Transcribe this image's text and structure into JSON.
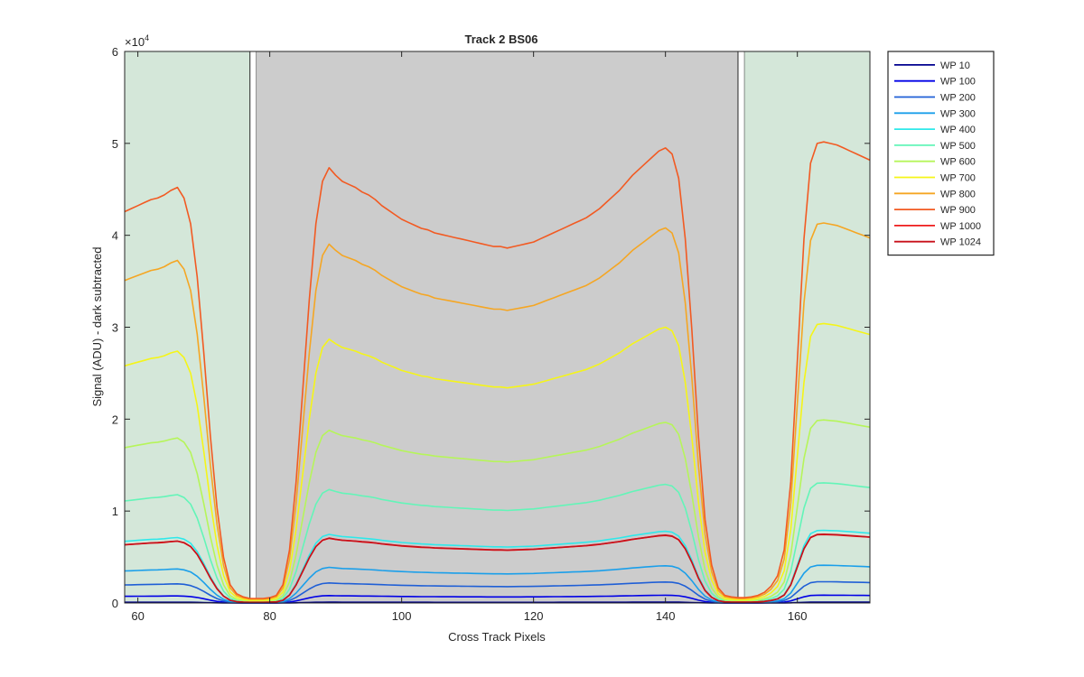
{
  "chart_data": {
    "type": "line",
    "title": "Track 2  BS06",
    "xlabel": "Cross Track Pixels",
    "ylabel": "Signal (ADU) - dark subtracted",
    "y_exponent_label": "×10",
    "y_exponent": "4",
    "xlim": [
      58,
      171
    ],
    "ylim": [
      0,
      60000
    ],
    "x_ticks": [
      60,
      80,
      100,
      120,
      140,
      160
    ],
    "y_ticks": [
      0,
      10000,
      20000,
      30000,
      40000,
      50000,
      60000
    ],
    "y_tick_labels": [
      "0",
      "1",
      "2",
      "3",
      "4",
      "5",
      "6"
    ],
    "grid": false,
    "legend_position": "outside-top-right",
    "regions": [
      {
        "kind": "green",
        "x": [
          58,
          77
        ],
        "color": "#d4e7d9"
      },
      {
        "kind": "gap",
        "x": [
          77,
          78
        ],
        "color": "#ffffff"
      },
      {
        "kind": "gray",
        "x": [
          78,
          151
        ],
        "color": "#cccccc"
      },
      {
        "kind": "gap",
        "x": [
          151,
          152
        ],
        "color": "#ffffff"
      },
      {
        "kind": "green",
        "x": [
          152,
          171
        ],
        "color": "#d4e7d9"
      }
    ],
    "series": [
      {
        "name": "WP 10",
        "color": "#00008f",
        "scale": 0.003
      },
      {
        "name": "WP 100",
        "color": "#0000e6",
        "scale": 0.028
      },
      {
        "name": "WP 200",
        "color": "#1f5fd6",
        "scale": 0.076
      },
      {
        "name": "WP 300",
        "color": "#1a9fea",
        "scale": 0.135
      },
      {
        "name": "WP 400",
        "color": "#2ee8ea",
        "scale": 0.26
      },
      {
        "name": "WP 500",
        "color": "#63f5b8",
        "scale": 0.43
      },
      {
        "name": "WP 600",
        "color": "#b6f55a",
        "scale": 0.655
      },
      {
        "name": "WP 700",
        "color": "#f5f518",
        "scale": 1.0
      },
      {
        "name": "WP 800",
        "color": "#f5a623",
        "scale": 1.36
      },
      {
        "name": "WP 900",
        "color": "#f25a22",
        "scale": 1.65
      },
      {
        "name": "WP 1000",
        "color": "#ee1c1c",
        "scale": 0.245
      },
      {
        "name": "WP 1024",
        "color": "#c8101a",
        "scale": 0.246
      }
    ],
    "reference_profile_wp700": {
      "x": [
        58,
        59,
        60,
        61,
        62,
        63,
        64,
        65,
        66,
        67,
        68,
        69,
        70,
        71,
        72,
        73,
        74,
        75,
        76,
        77,
        78,
        79,
        80,
        81,
        82,
        83,
        84,
        85,
        86,
        87,
        88,
        89,
        90,
        91,
        92,
        93,
        94,
        95,
        96,
        97,
        98,
        99,
        100,
        101,
        102,
        103,
        104,
        105,
        106,
        107,
        108,
        109,
        110,
        111,
        112,
        113,
        114,
        115,
        116,
        117,
        118,
        119,
        120,
        121,
        122,
        123,
        124,
        125,
        126,
        127,
        128,
        129,
        130,
        131,
        132,
        133,
        134,
        135,
        136,
        137,
        138,
        139,
        140,
        141,
        142,
        143,
        144,
        145,
        146,
        147,
        148,
        149,
        150,
        151,
        152,
        153,
        154,
        155,
        156,
        157,
        158,
        159,
        160,
        161,
        162,
        163,
        164,
        165,
        166,
        167,
        168,
        169,
        170,
        171
      ],
      "y": [
        25800,
        26000,
        26200,
        26400,
        26600,
        26700,
        26900,
        27200,
        27400,
        26700,
        25000,
        21500,
        16500,
        11000,
        6300,
        3000,
        1200,
        600,
        400,
        300,
        300,
        300,
        350,
        500,
        1200,
        3500,
        8000,
        14000,
        20000,
        25000,
        27800,
        28700,
        28200,
        27800,
        27600,
        27400,
        27100,
        26900,
        26600,
        26200,
        25900,
        25600,
        25300,
        25100,
        24900,
        24700,
        24600,
        24400,
        24300,
        24200,
        24100,
        24000,
        23900,
        23800,
        23700,
        23600,
        23500,
        23500,
        23400,
        23500,
        23600,
        23700,
        23800,
        24000,
        24200,
        24400,
        24600,
        24800,
        25000,
        25200,
        25400,
        25700,
        26000,
        26400,
        26800,
        27200,
        27700,
        28200,
        28600,
        29000,
        29400,
        29800,
        30000,
        29600,
        28000,
        24000,
        18000,
        11000,
        5500,
        2500,
        1000,
        500,
        400,
        350,
        350,
        400,
        500,
        700,
        1100,
        1800,
        3500,
        8000,
        16000,
        24000,
        29000,
        30300,
        30400,
        30300,
        30200,
        30000,
        29800,
        29600,
        29400,
        29200
      ]
    }
  }
}
